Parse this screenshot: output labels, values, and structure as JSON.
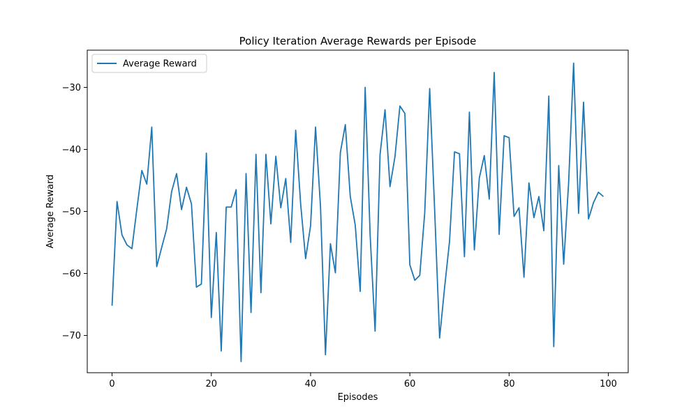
{
  "chart_data": {
    "type": "line",
    "title": "Policy Iteration Average Rewards per Episode",
    "xlabel": "Episodes",
    "ylabel": "Average Reward",
    "xlim": [
      -5,
      104
    ],
    "ylim": [
      -76,
      -24
    ],
    "x_ticks": [
      0,
      20,
      40,
      60,
      80,
      100
    ],
    "y_ticks": [
      -70,
      -60,
      -50,
      -40,
      -30
    ],
    "grid": false,
    "legend_position": "upper left",
    "series": [
      {
        "name": "Average Reward",
        "color": "#1f77b4",
        "x": [
          0,
          1,
          2,
          3,
          4,
          5,
          6,
          7,
          8,
          9,
          10,
          11,
          12,
          13,
          14,
          15,
          16,
          17,
          18,
          19,
          20,
          21,
          22,
          23,
          24,
          25,
          26,
          27,
          28,
          29,
          30,
          31,
          32,
          33,
          34,
          35,
          36,
          37,
          38,
          39,
          40,
          41,
          42,
          43,
          44,
          45,
          46,
          47,
          48,
          49,
          50,
          51,
          52,
          53,
          54,
          55,
          56,
          57,
          58,
          59,
          60,
          61,
          62,
          63,
          64,
          65,
          66,
          67,
          68,
          69,
          70,
          71,
          72,
          73,
          74,
          75,
          76,
          77,
          78,
          79,
          80,
          81,
          82,
          83,
          84,
          85,
          86,
          87,
          88,
          89,
          90,
          91,
          92,
          93,
          94,
          95,
          96,
          97,
          98,
          99
        ],
        "values": [
          -65.2,
          -48.4,
          -53.8,
          -55.4,
          -56.0,
          -49.6,
          -43.4,
          -45.6,
          -36.4,
          -58.9,
          -55.8,
          -52.8,
          -46.8,
          -43.9,
          -49.7,
          -46.1,
          -48.8,
          -62.2,
          -61.7,
          -40.6,
          -67.1,
          -53.4,
          -72.5,
          -49.3,
          -49.3,
          -46.5,
          -74.2,
          -43.9,
          -66.3,
          -40.8,
          -63.1,
          -40.8,
          -52.0,
          -41.1,
          -49.4,
          -44.7,
          -55.0,
          -36.9,
          -48.8,
          -57.6,
          -52.3,
          -36.4,
          -49.2,
          -73.1,
          -55.2,
          -59.9,
          -40.5,
          -36.0,
          -47.6,
          -52.2,
          -62.9,
          -30.0,
          -53.8,
          -69.3,
          -40.8,
          -33.6,
          -46.0,
          -41.2,
          -33.0,
          -34.2,
          -58.6,
          -61.1,
          -60.3,
          -50.2,
          -30.2,
          -49.8,
          -70.4,
          -62.3,
          -54.8,
          -40.4,
          -40.7,
          -57.3,
          -34.0,
          -56.2,
          -44.6,
          -41.0,
          -48.0,
          -27.6,
          -53.7,
          -37.8,
          -38.1,
          -50.8,
          -49.4,
          -60.6,
          -45.4,
          -51.0,
          -47.6,
          -53.1,
          -31.4,
          -71.8,
          -42.6,
          -58.5,
          -45.3,
          -26.1,
          -50.3,
          -32.4,
          -51.2,
          -48.6,
          -46.9,
          -47.6
        ]
      }
    ]
  }
}
